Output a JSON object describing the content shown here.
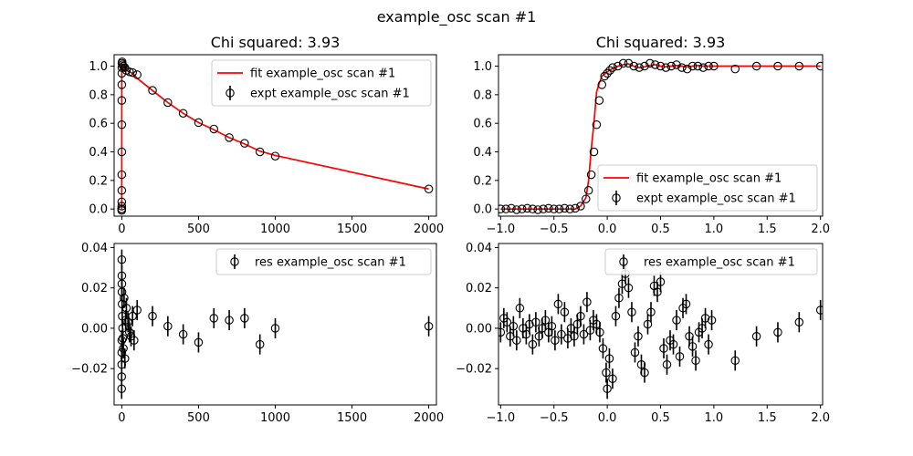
{
  "figure": {
    "suptitle": "example_osc scan #1"
  },
  "chart_data": [
    {
      "type": "scatter",
      "panel": "top-left",
      "title": "Chi squared:  3.93",
      "xlim": [
        -50,
        2050
      ],
      "ylim": [
        -0.05,
        1.08
      ],
      "xticks": [
        0,
        500,
        1000,
        1500,
        2000
      ],
      "xtick_labels": [
        "0",
        "500",
        "1000",
        "1500",
        "2000"
      ],
      "yticks": [
        0.0,
        0.2,
        0.4,
        0.6,
        0.8,
        1.0
      ],
      "ytick_labels": [
        "0.0",
        "0.2",
        "0.4",
        "0.6",
        "0.8",
        "1.0"
      ],
      "legend_position": "top-right",
      "series": [
        {
          "name": "fit example_osc scan #1",
          "kind": "line",
          "color": "#ff0000",
          "x": [
            -1,
            -0.3,
            -0.2,
            -0.15,
            -0.1,
            -0.05,
            0,
            0.5,
            1,
            2,
            5,
            10,
            20,
            30,
            40,
            50,
            60,
            70,
            80,
            100,
            200,
            300,
            400,
            500,
            600,
            700,
            800,
            900,
            1000,
            2000
          ],
          "y": [
            0.0,
            0.0,
            0.05,
            0.25,
            0.6,
            0.87,
            0.95,
            1.01,
            1.01,
            1.0,
            1.0,
            0.99,
            0.98,
            0.97,
            0.965,
            0.96,
            0.955,
            0.95,
            0.94,
            0.915,
            0.83,
            0.745,
            0.67,
            0.605,
            0.555,
            0.5,
            0.455,
            0.405,
            0.375,
            0.14
          ]
        },
        {
          "name": "expt example_osc scan #1",
          "kind": "scatter-errorbar",
          "color": "#000000",
          "x": [
            -0.9,
            -0.5,
            -0.3,
            -0.25,
            -0.2,
            -0.15,
            -0.12,
            -0.1,
            -0.08,
            -0.05,
            0,
            0.3,
            0.6,
            1,
            2,
            5,
            10,
            20,
            30,
            50,
            70,
            100,
            200,
            300,
            400,
            500,
            600,
            700,
            800,
            900,
            1000,
            2000
          ],
          "y": [
            0.0,
            -0.01,
            0.0,
            0.02,
            0.05,
            0.13,
            0.24,
            0.4,
            0.59,
            0.76,
            0.87,
            0.95,
            0.99,
            1.02,
            1.03,
            1.01,
            1.0,
            0.99,
            0.97,
            0.96,
            0.955,
            0.94,
            0.83,
            0.745,
            0.67,
            0.605,
            0.56,
            0.5,
            0.46,
            0.4,
            0.37,
            0.14
          ]
        }
      ]
    },
    {
      "type": "scatter",
      "panel": "top-right",
      "title": "Chi squared:  3.93",
      "xlim": [
        -1.02,
        2.02
      ],
      "ylim": [
        -0.05,
        1.08
      ],
      "xticks": [
        -1.0,
        -0.5,
        0.0,
        0.5,
        1.0,
        1.5,
        2.0
      ],
      "xtick_labels": [
        "−1.0",
        "−0.5",
        "0.0",
        "0.5",
        "1.0",
        "1.5",
        "2.0"
      ],
      "yticks": [
        0.0,
        0.2,
        0.4,
        0.6,
        0.8,
        1.0
      ],
      "ytick_labels": [
        "0.0",
        "0.2",
        "0.4",
        "0.6",
        "0.8",
        "1.0"
      ],
      "legend_position": "bottom-right",
      "series": [
        {
          "name": "fit example_osc scan #1",
          "kind": "line",
          "color": "#ff0000",
          "x": [
            -1.0,
            -0.3,
            -0.25,
            -0.2,
            -0.175,
            -0.15,
            -0.125,
            -0.1,
            -0.075,
            -0.05,
            0.0,
            0.05,
            0.1,
            0.15,
            0.2,
            0.25,
            0.3,
            0.35,
            0.4,
            0.45,
            0.5,
            0.55,
            0.6,
            0.65,
            0.7,
            0.75,
            0.8,
            0.85,
            0.9,
            0.95,
            1.0,
            1.5,
            2.0
          ],
          "y": [
            0.0,
            0.0,
            0.02,
            0.08,
            0.2,
            0.42,
            0.6,
            0.82,
            0.88,
            0.93,
            0.96,
            0.985,
            1.0,
            1.01,
            1.015,
            1.0,
            0.99,
            0.995,
            1.005,
            1.01,
            1.0,
            0.995,
            1.0,
            1.005,
            1.0,
            0.995,
            1.0,
            1.005,
            1.0,
            1.0,
            1.0,
            1.0,
            1.0
          ]
        },
        {
          "name": "expt example_osc scan #1",
          "kind": "scatter-errorbar",
          "color": "#000000",
          "x": [
            -1.0,
            -0.95,
            -0.9,
            -0.85,
            -0.8,
            -0.75,
            -0.7,
            -0.65,
            -0.6,
            -0.55,
            -0.5,
            -0.45,
            -0.4,
            -0.35,
            -0.3,
            -0.25,
            -0.2,
            -0.175,
            -0.15,
            -0.125,
            -0.1,
            -0.075,
            -0.05,
            -0.025,
            0.0,
            0.025,
            0.05,
            0.1,
            0.15,
            0.2,
            0.25,
            0.3,
            0.35,
            0.4,
            0.45,
            0.5,
            0.55,
            0.6,
            0.65,
            0.7,
            0.75,
            0.8,
            0.85,
            0.9,
            0.95,
            1.0,
            1.2,
            1.4,
            1.6,
            1.8,
            2.0
          ],
          "y": [
            0.0,
            0.0,
            0.005,
            -0.005,
            0.0,
            0.005,
            0.0,
            -0.005,
            0.0,
            0.005,
            0.0,
            0.0,
            0.005,
            0.0,
            0.005,
            0.02,
            0.07,
            0.13,
            0.24,
            0.4,
            0.59,
            0.76,
            0.87,
            0.93,
            0.95,
            0.97,
            0.99,
            1.0,
            1.02,
            1.02,
            1.0,
            0.99,
            1.0,
            1.02,
            1.01,
            1.0,
            0.99,
            1.0,
            1.01,
            0.99,
            0.98,
            1.0,
            1.0,
            0.99,
            1.0,
            1.0,
            0.98,
            1.0,
            1.0,
            1.0,
            1.0
          ]
        }
      ]
    },
    {
      "type": "scatter",
      "panel": "bottom-left",
      "title": "",
      "xlim": [
        -50,
        2050
      ],
      "ylim": [
        -0.038,
        0.042
      ],
      "xticks": [
        0,
        500,
        1000,
        1500,
        2000
      ],
      "xtick_labels": [
        "0",
        "500",
        "1000",
        "1500",
        "2000"
      ],
      "yticks": [
        -0.02,
        0.0,
        0.02,
        0.04
      ],
      "ytick_labels": [
        "−0.02",
        "0.00",
        "0.02",
        "0.04"
      ],
      "legend_position": "top-right",
      "series": [
        {
          "name": "res example_osc scan #1",
          "kind": "scatter-errorbar",
          "color": "#000000",
          "x": [
            -1,
            -0.8,
            -0.6,
            -0.4,
            -0.2,
            0,
            0.3,
            0.6,
            1,
            2,
            3,
            5,
            7,
            10,
            15,
            20,
            25,
            30,
            40,
            50,
            60,
            70,
            80,
            100,
            200,
            300,
            400,
            500,
            600,
            700,
            800,
            900,
            1000,
            2000
          ],
          "y": [
            -0.03,
            -0.024,
            -0.018,
            -0.012,
            -0.006,
            0.034,
            0.026,
            0.022,
            0.018,
            0.012,
            0.006,
            0.0,
            -0.005,
            -0.01,
            0.015,
            -0.015,
            0.004,
            0.01,
            0.003,
            -0.002,
            -0.004,
            0.006,
            -0.006,
            0.009,
            0.006,
            0.001,
            -0.003,
            -0.007,
            0.005,
            0.004,
            0.005,
            -0.008,
            0.0,
            0.001
          ]
        }
      ]
    },
    {
      "type": "scatter",
      "panel": "bottom-right",
      "title": "",
      "xlim": [
        -1.02,
        2.02
      ],
      "ylim": [
        -0.038,
        0.042
      ],
      "xticks": [
        -1.0,
        -0.5,
        0.0,
        0.5,
        1.0,
        1.5,
        2.0
      ],
      "xtick_labels": [
        "−1.0",
        "−0.5",
        "0.0",
        "0.5",
        "1.0",
        "1.5",
        "2.0"
      ],
      "yticks": [
        -0.02,
        0.0,
        0.02,
        0.04
      ],
      "ytick_labels": [
        "−0.02",
        "0.00",
        "0.02",
        "0.04"
      ],
      "legend_position": "top-right",
      "series": [
        {
          "name": "res example_osc scan #1",
          "kind": "scatter-errorbar",
          "color": "#000000",
          "x": [
            -1.0,
            -0.97,
            -0.94,
            -0.91,
            -0.88,
            -0.85,
            -0.82,
            -0.79,
            -0.76,
            -0.73,
            -0.7,
            -0.67,
            -0.64,
            -0.61,
            -0.58,
            -0.55,
            -0.52,
            -0.49,
            -0.46,
            -0.43,
            -0.4,
            -0.37,
            -0.34,
            -0.31,
            -0.28,
            -0.25,
            -0.22,
            -0.19,
            -0.16,
            -0.13,
            -0.1,
            -0.07,
            -0.04,
            -0.01,
            0.0,
            0.02,
            0.05,
            0.08,
            0.11,
            0.14,
            0.17,
            0.2,
            0.23,
            0.26,
            0.29,
            0.32,
            0.35,
            0.38,
            0.41,
            0.44,
            0.47,
            0.5,
            0.53,
            0.56,
            0.59,
            0.62,
            0.65,
            0.68,
            0.71,
            0.74,
            0.77,
            0.8,
            0.83,
            0.86,
            0.89,
            0.92,
            0.95,
            0.98,
            1.2,
            1.4,
            1.6,
            1.8,
            2.0
          ],
          "y": [
            -0.002,
            0.005,
            0.003,
            -0.004,
            0.001,
            -0.006,
            0.01,
            0.0,
            -0.003,
            0.002,
            -0.008,
            0.003,
            -0.004,
            0.0,
            0.004,
            -0.002,
            0.001,
            -0.006,
            0.012,
            -0.003,
            0.008,
            -0.005,
            0.0,
            -0.004,
            0.002,
            0.006,
            -0.003,
            0.013,
            -0.001,
            0.004,
            0.002,
            -0.002,
            -0.01,
            -0.022,
            -0.03,
            -0.015,
            -0.025,
            0.006,
            0.015,
            0.022,
            0.027,
            0.02,
            0.008,
            -0.012,
            -0.004,
            -0.018,
            -0.022,
            0.002,
            0.008,
            0.021,
            0.018,
            0.023,
            -0.01,
            -0.018,
            -0.006,
            -0.008,
            0.004,
            -0.014,
            0.01,
            0.012,
            -0.004,
            -0.009,
            -0.016,
            -0.002,
            0.0,
            0.005,
            -0.008,
            0.004,
            -0.016,
            -0.004,
            -0.002,
            0.003,
            0.009
          ]
        }
      ]
    }
  ]
}
